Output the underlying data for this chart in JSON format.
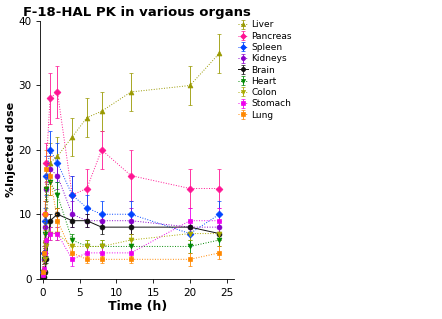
{
  "title": "F-18-HAL PK in various organs",
  "xlabel": "Time (h)",
  "ylabel": "%Injected dose",
  "xlim": [
    -0.3,
    26
  ],
  "ylim": [
    0,
    40
  ],
  "xticks": [
    0,
    5,
    10,
    15,
    20,
    25
  ],
  "yticks": [
    0,
    10,
    20,
    30,
    40
  ],
  "series": {
    "Liver": {
      "color": "#999900",
      "marker": "^",
      "linestyle": ":",
      "x": [
        0.05,
        0.17,
        0.33,
        0.5,
        1.0,
        2.0,
        4.0,
        6.0,
        8.0,
        12.0,
        20.0,
        24.0
      ],
      "y": [
        1,
        3,
        6,
        9,
        18,
        19,
        22,
        25,
        26,
        29,
        30,
        35
      ],
      "yerr": [
        0.3,
        0.8,
        1.5,
        2,
        3,
        3,
        3,
        3,
        3,
        3,
        3,
        3
      ]
    },
    "Pancreas": {
      "color": "#ff1493",
      "marker": "D",
      "linestyle": ":",
      "x": [
        0.05,
        0.17,
        0.33,
        0.5,
        1.0,
        2.0,
        4.0,
        6.0,
        8.0,
        12.0,
        20.0,
        24.0
      ],
      "y": [
        1,
        4,
        10,
        18,
        28,
        29,
        13,
        14,
        20,
        16,
        14,
        14
      ],
      "yerr": [
        0.3,
        1,
        2,
        3,
        4,
        4,
        3,
        3,
        3,
        4,
        3,
        3
      ]
    },
    "Spleen": {
      "color": "#0044ff",
      "marker": "D",
      "linestyle": ":",
      "x": [
        0.05,
        0.17,
        0.33,
        0.5,
        1.0,
        2.0,
        4.0,
        6.0,
        8.0,
        12.0,
        20.0,
        24.0
      ],
      "y": [
        1,
        4,
        9,
        16,
        20,
        18,
        13,
        11,
        10,
        10,
        7,
        10
      ],
      "yerr": [
        0.3,
        1,
        2,
        3,
        3,
        3,
        3,
        2,
        2,
        2,
        2,
        2
      ]
    },
    "Kidneys": {
      "color": "#8800cc",
      "marker": "o",
      "linestyle": ":",
      "x": [
        0.05,
        0.17,
        0.33,
        0.5,
        1.0,
        2.0,
        4.0,
        6.0,
        8.0,
        12.0,
        20.0,
        24.0
      ],
      "y": [
        1,
        3,
        8,
        14,
        17,
        16,
        10,
        9,
        9,
        9,
        8,
        8
      ],
      "yerr": [
        0.3,
        0.8,
        2,
        2,
        2,
        2,
        2,
        1,
        1,
        2,
        1,
        1
      ]
    },
    "Brain": {
      "color": "#111111",
      "marker": "o",
      "linestyle": "-",
      "x": [
        0.05,
        0.17,
        0.33,
        0.5,
        1.0,
        2.0,
        4.0,
        6.0,
        8.0,
        12.0,
        20.0,
        24.0
      ],
      "y": [
        0.1,
        0.3,
        1,
        3,
        9,
        10,
        9,
        9,
        8,
        8,
        8,
        7
      ],
      "yerr": [
        0.05,
        0.1,
        0.3,
        0.5,
        1,
        1,
        1,
        1,
        1,
        1,
        1,
        1
      ]
    },
    "Heart": {
      "color": "#008800",
      "marker": "v",
      "linestyle": ":",
      "x": [
        0.05,
        0.17,
        0.33,
        0.5,
        1.0,
        2.0,
        4.0,
        6.0,
        8.0,
        12.0,
        20.0,
        24.0
      ],
      "y": [
        1,
        3,
        7,
        14,
        15,
        13,
        6,
        5,
        5,
        5,
        5,
        6
      ],
      "yerr": [
        0.3,
        0.8,
        2,
        2,
        2,
        2,
        1,
        1,
        1,
        1,
        1,
        1
      ]
    },
    "Colon": {
      "color": "#aaaa00",
      "marker": "v",
      "linestyle": ":",
      "x": [
        0.05,
        0.17,
        0.33,
        0.5,
        1.0,
        2.0,
        4.0,
        6.0,
        8.0,
        12.0,
        20.0,
        24.0
      ],
      "y": [
        0.5,
        1,
        3,
        5,
        7,
        7,
        5,
        5,
        5,
        6,
        7,
        7
      ],
      "yerr": [
        0.2,
        0.4,
        0.8,
        1,
        1,
        1,
        1,
        1,
        1,
        1,
        1,
        1
      ]
    },
    "Stomach": {
      "color": "#ee00ee",
      "marker": "s",
      "linestyle": ":",
      "x": [
        0.05,
        0.17,
        0.33,
        0.5,
        1.0,
        2.0,
        4.0,
        6.0,
        8.0,
        12.0,
        20.0,
        24.0
      ],
      "y": [
        0.5,
        1.5,
        4,
        6,
        7,
        7,
        3,
        4,
        4,
        4,
        9,
        9
      ],
      "yerr": [
        0.2,
        0.4,
        0.8,
        1,
        1,
        1,
        1,
        1,
        1,
        1,
        2,
        2
      ]
    },
    "Lung": {
      "color": "#ff8800",
      "marker": "s",
      "linestyle": ":",
      "x": [
        0.05,
        0.17,
        0.33,
        0.5,
        1.0,
        2.0,
        4.0,
        6.0,
        8.0,
        12.0,
        20.0,
        24.0
      ],
      "y": [
        1,
        4,
        10,
        17,
        16,
        9,
        4,
        3,
        3,
        3,
        3,
        4
      ],
      "yerr": [
        0.3,
        1,
        2,
        3,
        3,
        2,
        1,
        0.5,
        0.5,
        0.5,
        1,
        1
      ]
    }
  }
}
